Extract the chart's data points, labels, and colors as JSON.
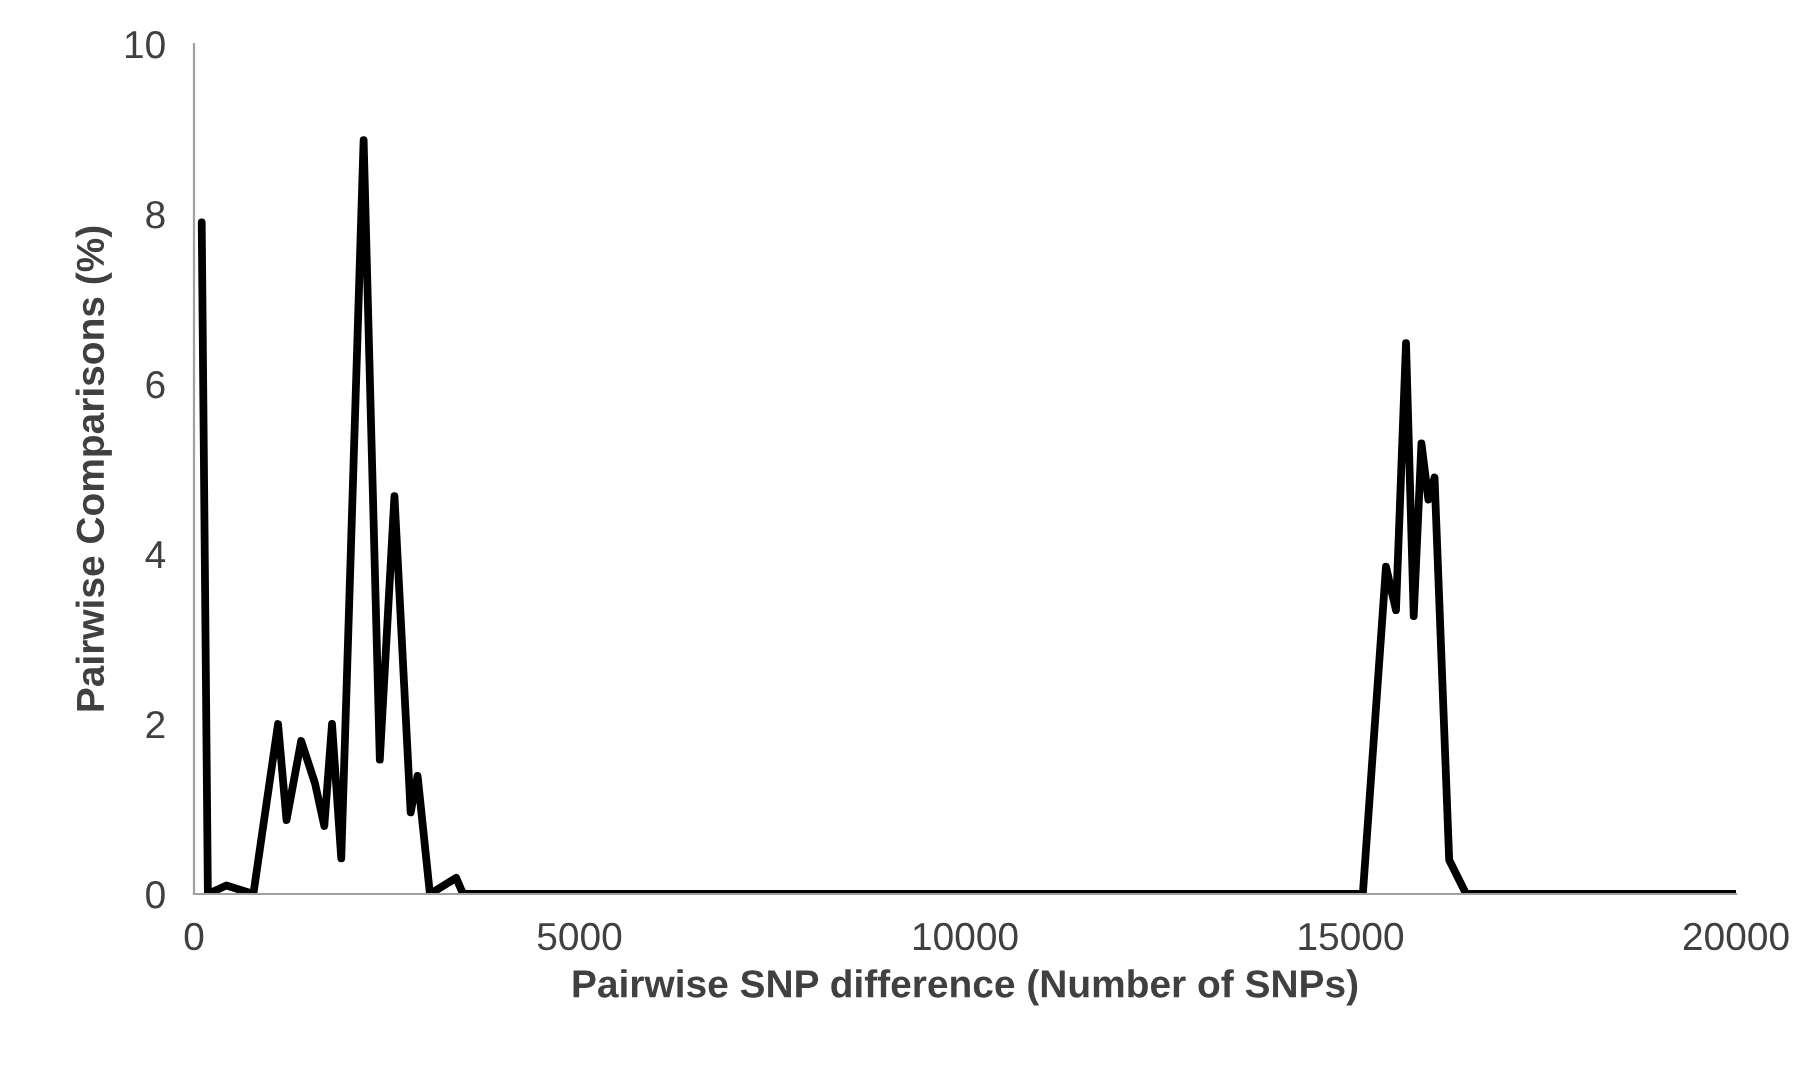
{
  "chart_data": {
    "type": "line",
    "xlabel": "Pairwise SNP difference (Number of SNPs)",
    "ylabel": "Pairwise Comparisons (%)",
    "x": [
      100,
      180,
      420,
      770,
      1090,
      1200,
      1390,
      1570,
      1690,
      1790,
      1910,
      2200,
      2410,
      2600,
      2810,
      2900,
      3060,
      3400,
      3490,
      15160,
      15460,
      15590,
      15720,
      15820,
      15920,
      16010,
      16090,
      16280,
      16500,
      20000
    ],
    "series": [
      {
        "color": "#000000",
        "values": [
          7.9,
          0,
          0.1,
          0,
          2.0,
          0.87,
          1.8,
          1.3,
          0.8,
          2.0,
          0.42,
          8.87,
          1.58,
          4.68,
          0.96,
          1.39,
          0,
          0.19,
          0,
          0,
          3.85,
          3.34,
          6.48,
          3.27,
          5.3,
          4.64,
          4.9,
          0.4,
          0,
          0
        ]
      }
    ],
    "xlim": [
      0,
      20000
    ],
    "xticks": [
      0,
      5000,
      10000,
      15000,
      20000
    ],
    "ylim": [
      0,
      10
    ],
    "yticks": [
      0,
      2,
      4,
      6,
      8,
      10
    ],
    "grid": false,
    "legend": false,
    "marker": "none",
    "line_style": "solid"
  }
}
